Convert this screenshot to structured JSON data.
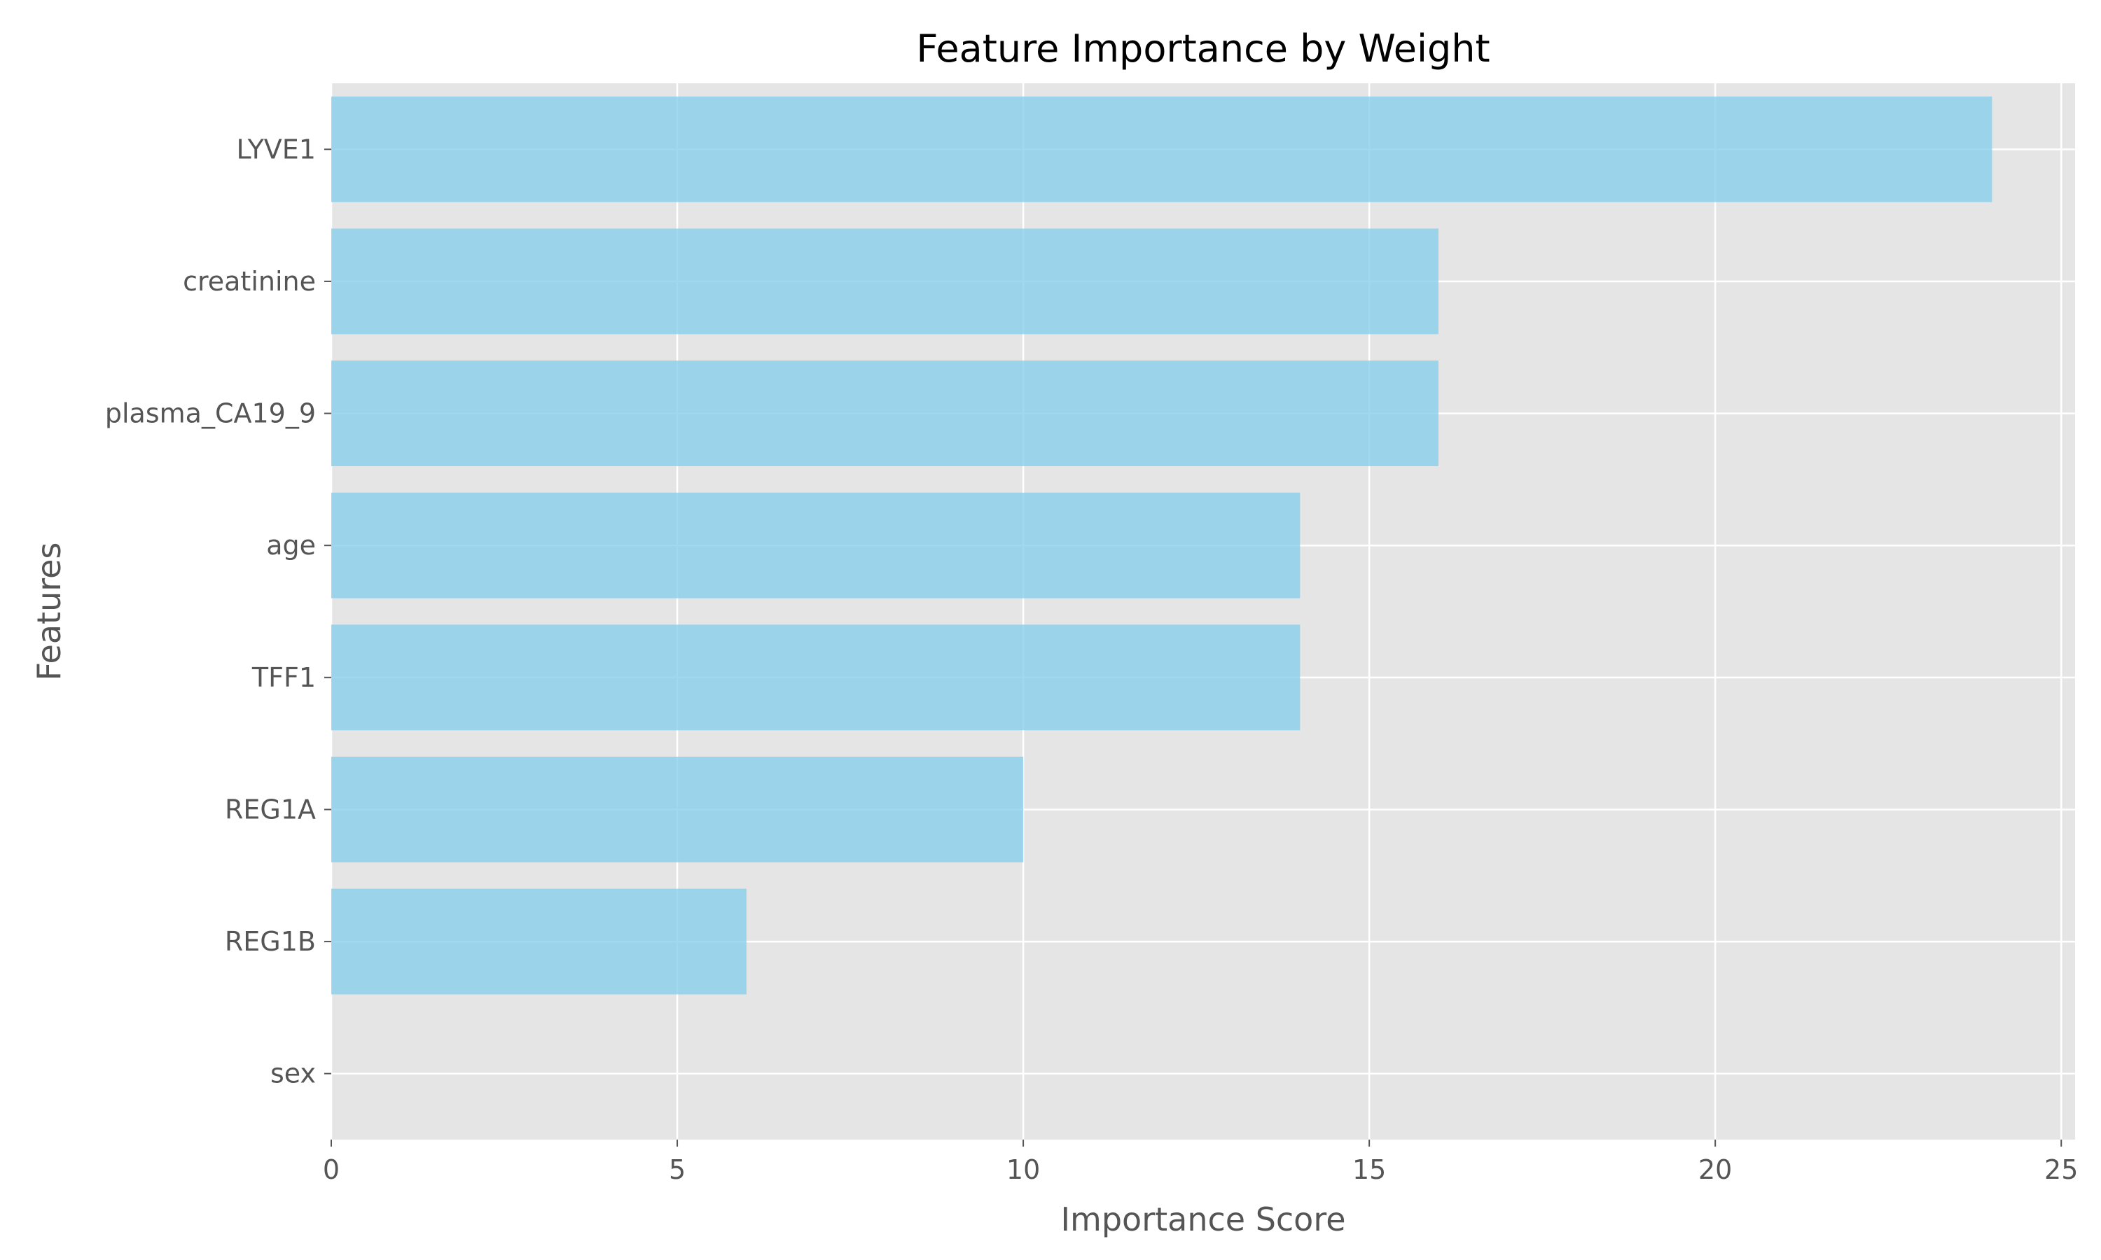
{
  "chart_data": {
    "type": "bar",
    "orientation": "horizontal",
    "title": "Feature Importance by Weight",
    "xlabel": "Importance Score",
    "ylabel": "Features",
    "categories": [
      "LYVE1",
      "creatinine",
      "plasma_CA19_9",
      "age",
      "TFF1",
      "REG1A",
      "REG1B",
      "sex"
    ],
    "values": [
      24,
      16,
      16,
      14,
      14,
      10,
      6,
      0
    ],
    "xlim": [
      0,
      25.2
    ],
    "xticks": [
      0,
      5,
      10,
      15,
      20,
      25
    ],
    "grid": true,
    "colors": {
      "bar": "#87ceeb",
      "plot_background": "#e5e5e5",
      "grid": "#ffffff",
      "tick": "#555555"
    }
  }
}
